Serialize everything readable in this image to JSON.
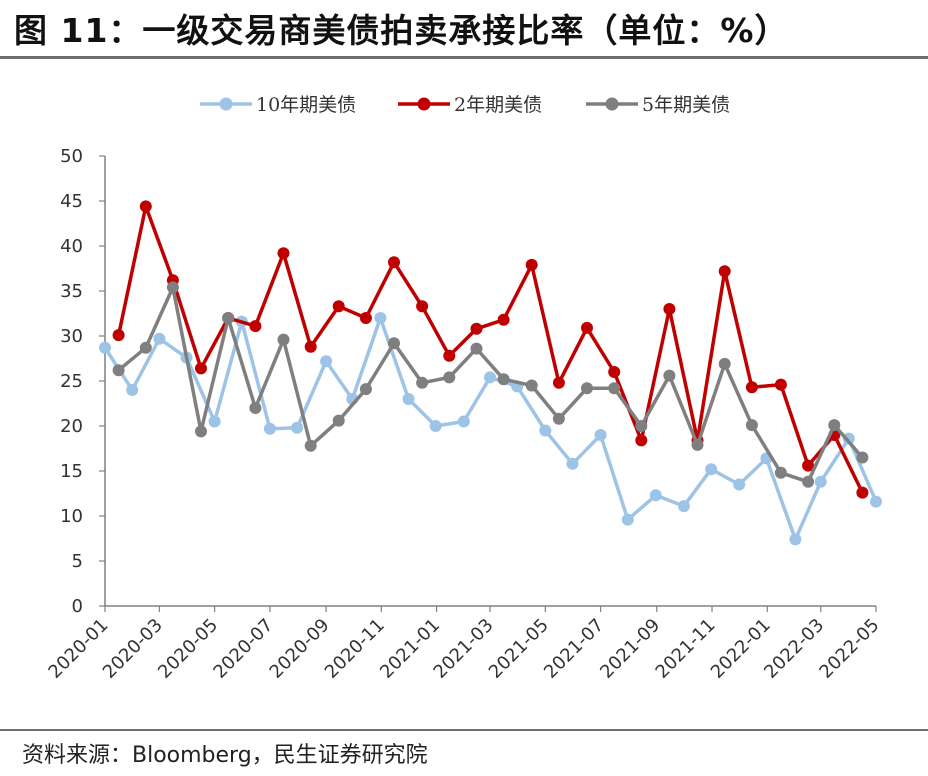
{
  "header": {
    "title": "图 11：一级交易商美债拍卖承接比率（单位：%）"
  },
  "footer": {
    "source": "资料来源：Bloomberg，民生证券研究院"
  },
  "colors": {
    "s10": "#9dc3e6",
    "s2": "#c00000",
    "s5": "#7f7f7f",
    "axis": "#808080"
  },
  "chart_data": {
    "type": "line",
    "ylim": [
      0,
      50
    ],
    "yticks": [
      0,
      5,
      10,
      15,
      20,
      25,
      30,
      35,
      40,
      45,
      50
    ],
    "xlim": [
      "2020-01",
      "2022-05"
    ],
    "xticks": [
      "2020-01",
      "2020-03",
      "2020-05",
      "2020-07",
      "2020-09",
      "2020-11",
      "2021-01",
      "2021-03",
      "2021-05",
      "2021-07",
      "2021-09",
      "2021-11",
      "2022-01",
      "2022-03",
      "2022-05"
    ],
    "legend_position": "top",
    "grid": false,
    "series": [
      {
        "name": "10年期美债",
        "color": "#9dc3e6",
        "points": [
          [
            "2020-01-01",
            28.7
          ],
          [
            "2020-01-31",
            24.0
          ],
          [
            "2020-03-01",
            29.7
          ],
          [
            "2020-03-31",
            27.6
          ],
          [
            "2020-05-01",
            20.5
          ],
          [
            "2020-05-31",
            31.6
          ],
          [
            "2020-07-01",
            19.7
          ],
          [
            "2020-07-31",
            19.8
          ],
          [
            "2020-09-01",
            27.2
          ],
          [
            "2020-09-30",
            23.0
          ],
          [
            "2020-10-31",
            32.0
          ],
          [
            "2020-12-01",
            23.0
          ],
          [
            "2020-12-31",
            20.0
          ],
          [
            "2021-01-31",
            20.5
          ],
          [
            "2021-03-01",
            25.4
          ],
          [
            "2021-03-31",
            24.4
          ],
          [
            "2021-05-01",
            19.5
          ],
          [
            "2021-05-31",
            15.8
          ],
          [
            "2021-07-01",
            19.0
          ],
          [
            "2021-07-31",
            9.6
          ],
          [
            "2021-08-31",
            12.3
          ],
          [
            "2021-10-01",
            11.1
          ],
          [
            "2021-10-31",
            15.2
          ],
          [
            "2021-12-01",
            13.5
          ],
          [
            "2021-12-31",
            16.4
          ],
          [
            "2022-02-01",
            7.4
          ],
          [
            "2022-03-01",
            13.8
          ],
          [
            "2022-04-01",
            18.6
          ],
          [
            "2022-05-01",
            11.6
          ]
        ]
      },
      {
        "name": "2年期美债",
        "color": "#c00000",
        "points": [
          [
            "2020-01-16",
            30.1
          ],
          [
            "2020-02-15",
            44.4
          ],
          [
            "2020-03-16",
            36.2
          ],
          [
            "2020-04-16",
            26.4
          ],
          [
            "2020-05-16",
            32.0
          ],
          [
            "2020-06-15",
            31.1
          ],
          [
            "2020-07-16",
            39.2
          ],
          [
            "2020-08-15",
            28.8
          ],
          [
            "2020-09-15",
            33.3
          ],
          [
            "2020-10-15",
            32.0
          ],
          [
            "2020-11-15",
            38.2
          ],
          [
            "2020-12-16",
            33.3
          ],
          [
            "2021-01-15",
            27.8
          ],
          [
            "2021-02-14",
            30.8
          ],
          [
            "2021-03-16",
            31.8
          ],
          [
            "2021-04-16",
            37.9
          ],
          [
            "2021-05-16",
            24.8
          ],
          [
            "2021-06-16",
            30.9
          ],
          [
            "2021-07-16",
            26.0
          ],
          [
            "2021-08-15",
            18.4
          ],
          [
            "2021-09-15",
            33.0
          ],
          [
            "2021-10-16",
            18.4
          ],
          [
            "2021-11-15",
            37.2
          ],
          [
            "2021-12-15",
            24.3
          ],
          [
            "2022-01-16",
            24.6
          ],
          [
            "2022-02-15",
            15.6
          ],
          [
            "2022-03-16",
            19.0
          ],
          [
            "2022-04-16",
            12.6
          ]
        ]
      },
      {
        "name": "5年期美债",
        "color": "#7f7f7f",
        "points": [
          [
            "2020-01-16",
            26.2
          ],
          [
            "2020-02-15",
            28.7
          ],
          [
            "2020-03-16",
            35.4
          ],
          [
            "2020-04-16",
            19.4
          ],
          [
            "2020-05-16",
            32.0
          ],
          [
            "2020-06-15",
            22.0
          ],
          [
            "2020-07-16",
            29.6
          ],
          [
            "2020-08-15",
            17.8
          ],
          [
            "2020-09-15",
            20.6
          ],
          [
            "2020-10-15",
            24.1
          ],
          [
            "2020-11-15",
            29.2
          ],
          [
            "2020-12-16",
            24.8
          ],
          [
            "2021-01-15",
            25.4
          ],
          [
            "2021-02-14",
            28.6
          ],
          [
            "2021-03-16",
            25.2
          ],
          [
            "2021-04-16",
            24.5
          ],
          [
            "2021-05-16",
            20.8
          ],
          [
            "2021-06-16",
            24.2
          ],
          [
            "2021-07-16",
            24.2
          ],
          [
            "2021-08-15",
            20.0
          ],
          [
            "2021-09-15",
            25.6
          ],
          [
            "2021-10-16",
            17.9
          ],
          [
            "2021-11-15",
            26.9
          ],
          [
            "2021-12-15",
            20.1
          ],
          [
            "2022-01-16",
            14.8
          ],
          [
            "2022-02-15",
            13.8
          ],
          [
            "2022-03-16",
            20.1
          ],
          [
            "2022-04-16",
            16.5
          ]
        ]
      }
    ]
  }
}
